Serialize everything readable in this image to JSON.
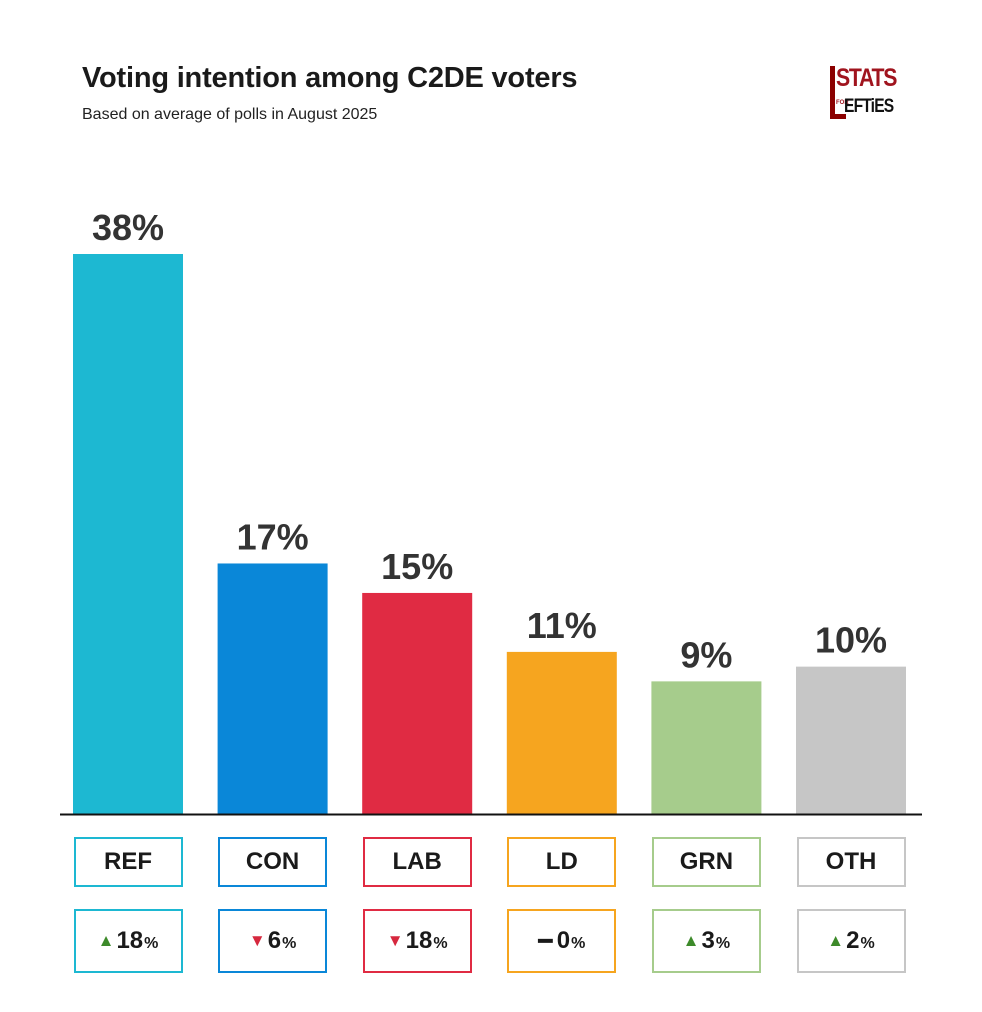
{
  "header": {
    "title": "Voting intention among C2DE voters",
    "subtitle": "Based on average of polls in August 2025"
  },
  "logo": {
    "top": "STATS",
    "small": "FOR",
    "bottom": "EFTiES"
  },
  "chart_data": {
    "type": "bar",
    "title": "Voting intention among C2DE voters",
    "subtitle": "Based on average of polls in August 2025",
    "categories": [
      "REF",
      "CON",
      "LAB",
      "LD",
      "GRN",
      "OTH"
    ],
    "values": [
      38,
      17,
      15,
      11,
      9,
      10
    ],
    "value_labels": [
      "38%",
      "17%",
      "15%",
      "11%",
      "9%",
      "10%"
    ],
    "colors": [
      "#1db8d2",
      "#0a87d8",
      "#e02b43",
      "#f6a51f",
      "#a6cc8c",
      "#c6c6c6"
    ],
    "changes": [
      {
        "direction": "up",
        "value": "18",
        "unit": "%"
      },
      {
        "direction": "down",
        "value": "6",
        "unit": "%"
      },
      {
        "direction": "down",
        "value": "18",
        "unit": "%"
      },
      {
        "direction": "none",
        "value": "0",
        "unit": "%"
      },
      {
        "direction": "up",
        "value": "3",
        "unit": "%"
      },
      {
        "direction": "up",
        "value": "2",
        "unit": "%"
      }
    ],
    "arrow_colors": {
      "up": "#3d8a2a",
      "down": "#d6283e",
      "none": "#1a1a1a"
    },
    "ylim": [
      0,
      38
    ],
    "grid": false,
    "legend": "none"
  }
}
